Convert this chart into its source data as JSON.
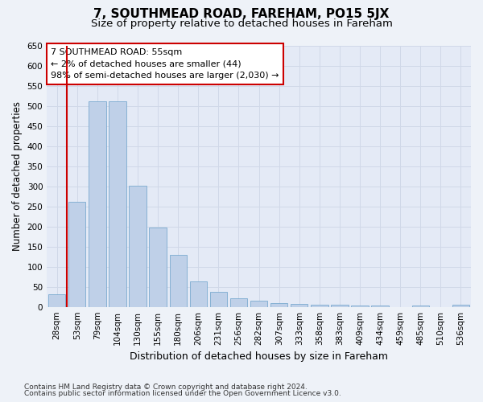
{
  "title1": "7, SOUTHMEAD ROAD, FAREHAM, PO15 5JX",
  "title2": "Size of property relative to detached houses in Fareham",
  "xlabel": "Distribution of detached houses by size in Fareham",
  "ylabel": "Number of detached properties",
  "footnote1": "Contains HM Land Registry data © Crown copyright and database right 2024.",
  "footnote2": "Contains public sector information licensed under the Open Government Licence v3.0.",
  "categories": [
    "28sqm",
    "53sqm",
    "79sqm",
    "104sqm",
    "130sqm",
    "155sqm",
    "180sqm",
    "206sqm",
    "231sqm",
    "256sqm",
    "282sqm",
    "307sqm",
    "333sqm",
    "358sqm",
    "383sqm",
    "409sqm",
    "434sqm",
    "459sqm",
    "485sqm",
    "510sqm",
    "536sqm"
  ],
  "values": [
    32,
    262,
    512,
    512,
    302,
    197,
    130,
    64,
    38,
    22,
    16,
    10,
    8,
    6,
    6,
    4,
    4,
    0,
    4,
    0,
    6
  ],
  "bar_color": "#bfd0e8",
  "bar_edge_color": "#7aaad0",
  "highlight_color": "#cc0000",
  "annotation_line1": "7 SOUTHMEAD ROAD: 55sqm",
  "annotation_line2": "← 2% of detached houses are smaller (44)",
  "annotation_line3": "98% of semi-detached houses are larger (2,030) →",
  "annotation_box_color": "#ffffff",
  "annotation_box_edge": "#cc0000",
  "ylim": [
    0,
    650
  ],
  "yticks": [
    0,
    50,
    100,
    150,
    200,
    250,
    300,
    350,
    400,
    450,
    500,
    550,
    600,
    650
  ],
  "bg_color": "#eef2f8",
  "plot_bg": "#e4eaf6",
  "grid_color": "#d0d8e8",
  "title1_fontsize": 11,
  "title2_fontsize": 9.5,
  "xlabel_fontsize": 9,
  "ylabel_fontsize": 8.5,
  "tick_fontsize": 7.5,
  "annot_fontsize": 8,
  "footnote_fontsize": 6.5
}
